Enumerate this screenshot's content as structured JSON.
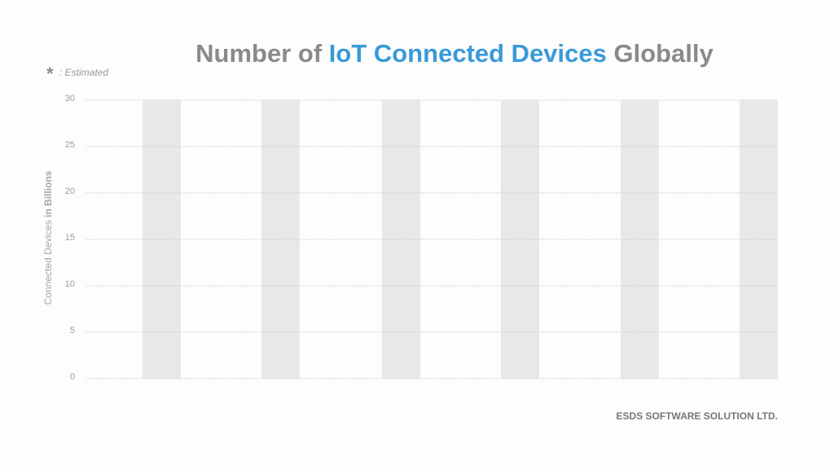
{
  "chart_data": {
    "type": "bar",
    "title": {
      "before": "Number of ",
      "highlight": "IoT Connected Devices",
      "after": " Globally"
    },
    "note": {
      "symbol": "*",
      "text": ": Estimated"
    },
    "y_label": {
      "main": "Connected Devices ",
      "bold": "in Billions"
    },
    "ylim": [
      0,
      30
    ],
    "yticks": [
      0,
      5,
      10,
      15,
      20,
      25,
      30
    ],
    "grid": true,
    "footer": "ESDS SOFTWARE SOLUTION LTD."
  }
}
